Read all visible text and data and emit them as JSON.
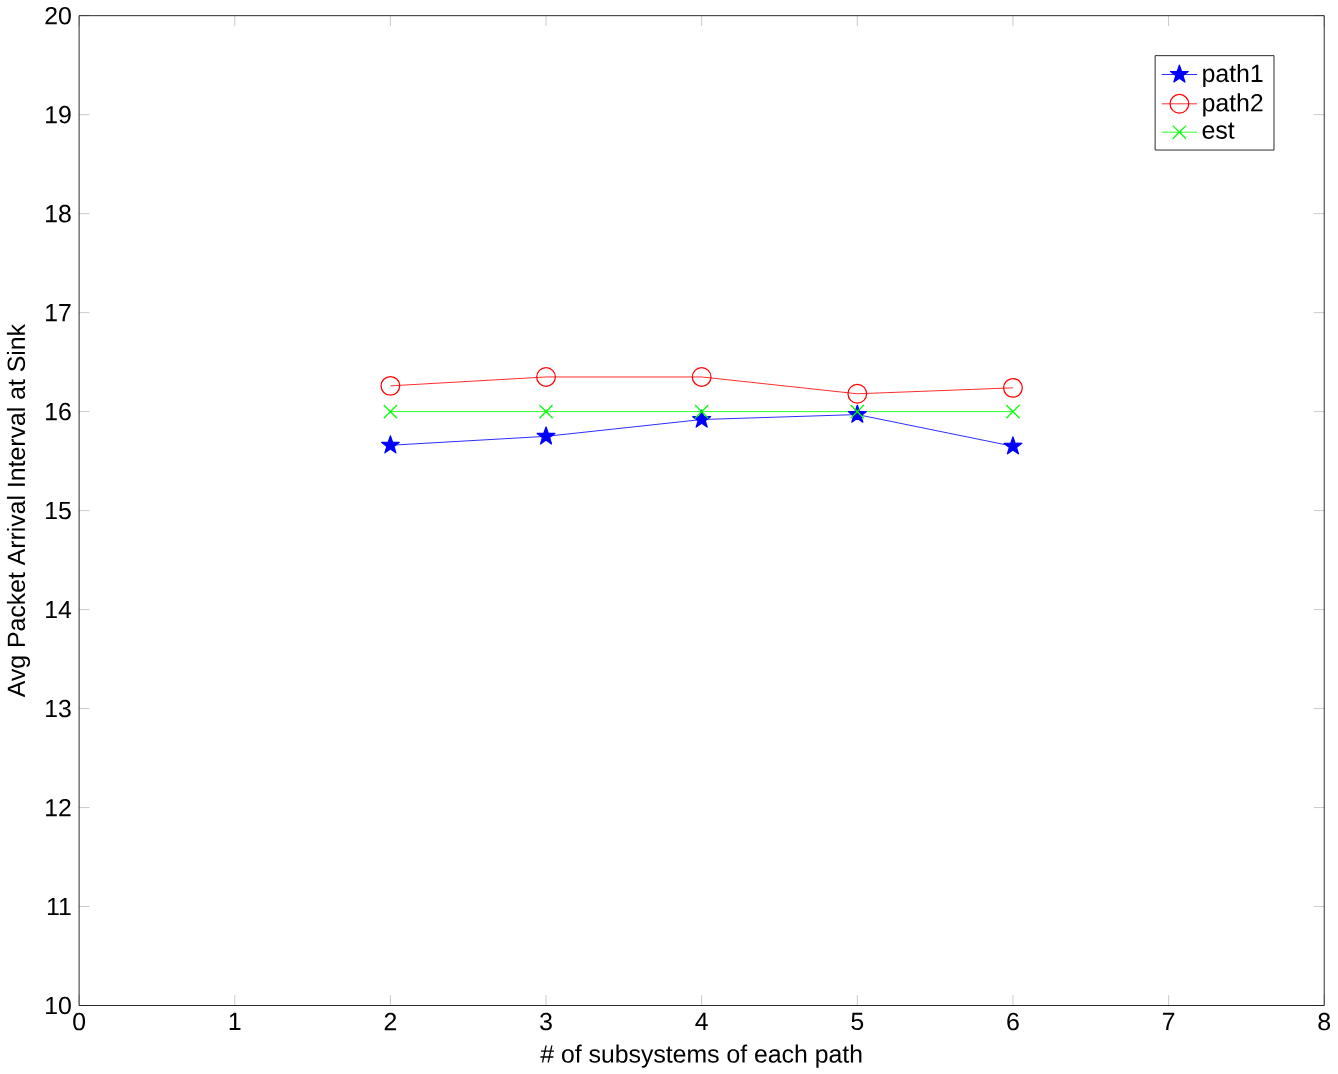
{
  "chart_data": {
    "type": "line",
    "xlabel": "# of subsystems of each path",
    "ylabel": "Avg Packet Arrival Interval at Sink",
    "x": [
      2,
      3,
      4,
      5,
      6
    ],
    "series": [
      {
        "name": "path1",
        "color": "#0000ff",
        "marker": "star",
        "values": [
          15.66,
          15.75,
          15.92,
          15.97,
          15.65
        ]
      },
      {
        "name": "path2",
        "color": "#ff0000",
        "marker": "circle",
        "values": [
          16.26,
          16.35,
          16.35,
          16.18,
          16.24
        ]
      },
      {
        "name": "est",
        "color": "#00ff00",
        "marker": "cross",
        "values": [
          16,
          16,
          16,
          16,
          16
        ]
      }
    ],
    "xlim": [
      0,
      8
    ],
    "ylim": [
      10,
      20
    ],
    "xticks": [
      0,
      1,
      2,
      3,
      4,
      5,
      6,
      7,
      8
    ],
    "yticks": [
      10,
      11,
      12,
      13,
      14,
      15,
      16,
      17,
      18,
      19,
      20
    ],
    "legend": "top right",
    "grid": false,
    "line_style": "solid"
  }
}
